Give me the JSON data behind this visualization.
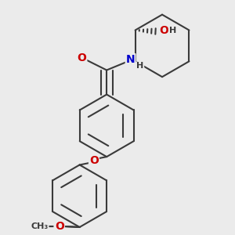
{
  "background_color": "#ebebeb",
  "bond_color": "#3a3a3a",
  "bond_width": 1.5,
  "atom_colors": {
    "O": "#cc0000",
    "N": "#0000cc",
    "H": "#3a3a3a",
    "C": "#3a3a3a"
  },
  "font_size_atom": 10,
  "font_size_small": 8,
  "figure_size": [
    3.0,
    3.0
  ],
  "dpi": 100
}
